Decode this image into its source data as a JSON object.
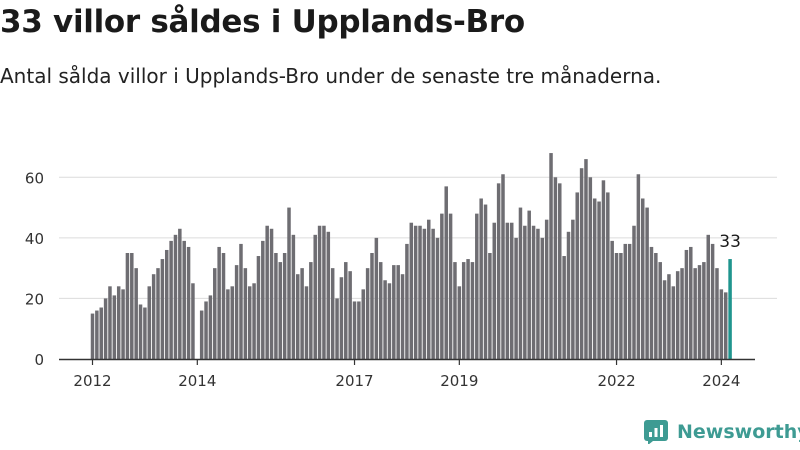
{
  "header": {
    "title": "33 villor såldes i Upplands-Bro",
    "subtitle": "Antal sålda villor i Upplands-Bro under de senaste tre månaderna."
  },
  "brand": {
    "name": "Newsworthy",
    "icon": "newsworthy-logo-icon"
  },
  "colors": {
    "bar": "#6e6d72",
    "highlight": "#1f958e",
    "grid": "#dcdcdc",
    "axis": "#333333",
    "brand": "#3e9b93"
  },
  "chart_data": {
    "type": "bar",
    "title": "33 villor såldes i Upplands-Bro",
    "subtitle": "Antal sålda villor i Upplands-Bro under de senaste tre månaderna.",
    "xlabel": "",
    "ylabel": "",
    "ylim": [
      0,
      70
    ],
    "yticks": [
      0,
      20,
      40,
      60
    ],
    "grid": "horizontal",
    "x_start": "2012-01",
    "x_ticks": [
      "2012",
      "2014",
      "2017",
      "2019",
      "2022",
      "2024"
    ],
    "x_tick_dates": [
      "2012-01",
      "2014-01",
      "2017-01",
      "2019-01",
      "2022-01",
      "2024-01"
    ],
    "values": [
      15,
      16,
      17,
      20,
      24,
      21,
      24,
      23,
      35,
      35,
      30,
      18,
      17,
      24,
      28,
      30,
      33,
      36,
      39,
      41,
      43,
      39,
      37,
      25,
      null,
      16,
      19,
      21,
      30,
      37,
      35,
      23,
      24,
      31,
      38,
      30,
      24,
      25,
      34,
      39,
      44,
      43,
      35,
      32,
      35,
      50,
      41,
      28,
      30,
      24,
      32,
      41,
      44,
      44,
      42,
      30,
      20,
      27,
      32,
      29,
      19,
      19,
      23,
      30,
      35,
      40,
      32,
      26,
      25,
      31,
      31,
      28,
      38,
      45,
      44,
      44,
      43,
      46,
      43,
      40,
      48,
      57,
      48,
      32,
      24,
      32,
      33,
      32,
      48,
      53,
      51,
      35,
      45,
      58,
      61,
      45,
      45,
      40,
      50,
      44,
      49,
      44,
      43,
      40,
      46,
      68,
      60,
      58,
      34,
      42,
      46,
      55,
      63,
      66,
      60,
      53,
      52,
      59,
      55,
      39,
      35,
      35,
      38,
      38,
      44,
      61,
      53,
      50,
      37,
      35,
      32,
      26,
      28,
      24,
      29,
      30,
      36,
      37,
      30,
      31,
      32,
      41,
      38,
      30,
      23,
      22,
      33
    ],
    "highlight_last": true,
    "annotation": "33"
  }
}
